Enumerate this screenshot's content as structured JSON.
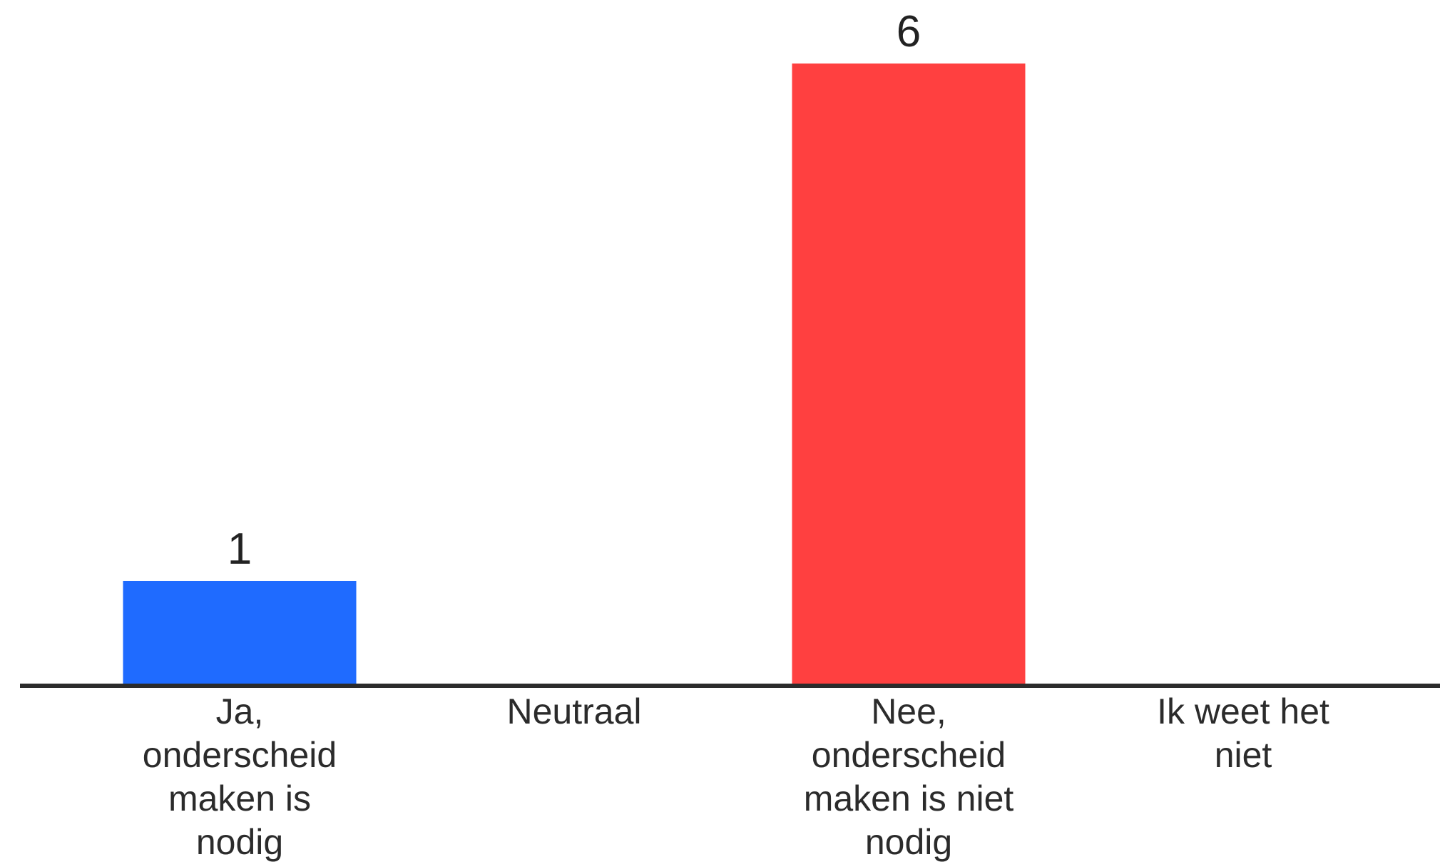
{
  "chart_data": {
    "type": "bar",
    "categories": [
      [
        "Ja,",
        "onderscheid",
        "maken is",
        "nodig"
      ],
      [
        "Neutraal"
      ],
      [
        "Nee,",
        "onderscheid",
        "maken is niet",
        "nodig"
      ],
      [
        "Ik weet het",
        "niet"
      ]
    ],
    "values": [
      1,
      0,
      6,
      0
    ],
    "value_labels": [
      "1",
      "",
      "6",
      ""
    ],
    "colors": [
      "#1f6bff",
      "#c8c8c8",
      "#ff4040",
      "#c8c8c8"
    ],
    "axis_color": "#2b2b2b",
    "grid": false,
    "legend": "none"
  }
}
